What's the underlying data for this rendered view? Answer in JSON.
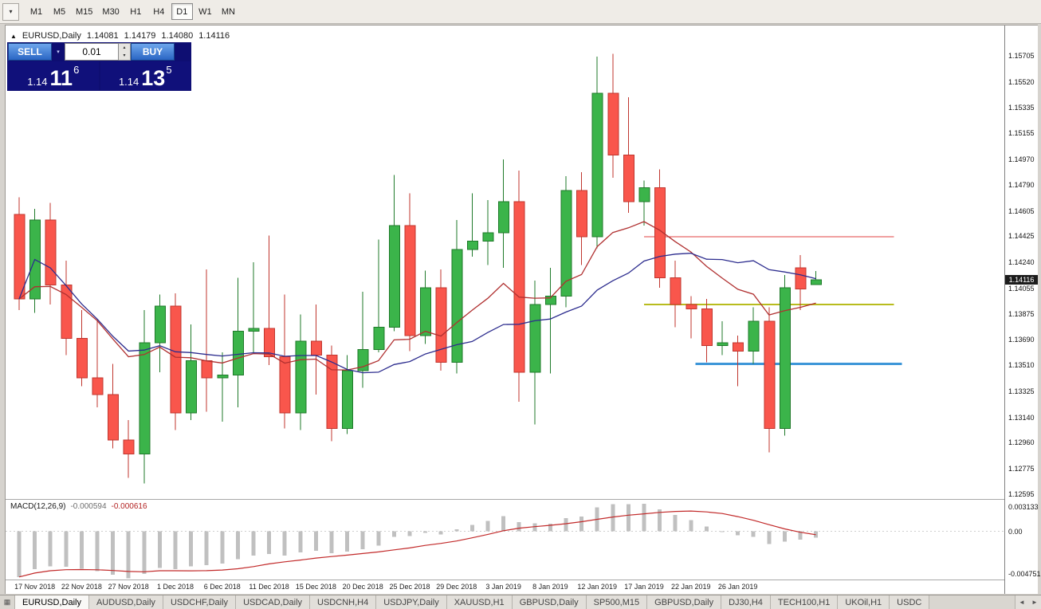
{
  "icons": {
    "dropdown_arrow": "▾",
    "spinner_up": "▴",
    "spinner_down": "▾",
    "tab_scroll_left": "◄",
    "tab_scroll_right": "►",
    "chart_marker": "▲",
    "window_icon": "▦"
  },
  "toolbar": {
    "timeframes": [
      "M1",
      "M5",
      "M15",
      "M30",
      "H1",
      "H4",
      "D1",
      "W1",
      "MN"
    ],
    "active": "D1"
  },
  "chart_header": {
    "symbol": "EURUSD,Daily",
    "open": "1.14081",
    "high": "1.14179",
    "low": "1.14080",
    "close": "1.14116"
  },
  "trade_panel": {
    "sell_label": "SELL",
    "buy_label": "BUY",
    "volume": "0.01",
    "sell_price": {
      "prefix": "1.14",
      "big": "11",
      "sup": "6"
    },
    "buy_price": {
      "prefix": "1.14",
      "big": "13",
      "sup": "5"
    }
  },
  "chart_data": {
    "type": "candlestick",
    "symbol": "EURUSD",
    "timeframe": "Daily",
    "price_top": 1.1592,
    "price_bottom": 1.1256,
    "current_price": "1.14116",
    "colors": {
      "bull": "#3bb44a",
      "bull_edge": "#1f7a2a",
      "bear": "#f9564c",
      "bear_edge": "#c0362e",
      "background": "#ffffff"
    },
    "y_axis_labels": [
      "1.15705",
      "1.15520",
      "1.15335",
      "1.15155",
      "1.14970",
      "1.14790",
      "1.14605",
      "1.14425",
      "1.14240",
      "1.14055",
      "1.13875",
      "1.13690",
      "1.13510",
      "1.13325",
      "1.13140",
      "1.12960",
      "1.12775",
      "1.12595"
    ],
    "x_labels": [
      {
        "text": "17 Nov 2018",
        "i": 1
      },
      {
        "text": "22 Nov 2018",
        "i": 4
      },
      {
        "text": "27 Nov 2018",
        "i": 7
      },
      {
        "text": "1 Dec 2018",
        "i": 10
      },
      {
        "text": "6 Dec 2018",
        "i": 13
      },
      {
        "text": "11 Dec 2018",
        "i": 16
      },
      {
        "text": "15 Dec 2018",
        "i": 19
      },
      {
        "text": "20 Dec 2018",
        "i": 22
      },
      {
        "text": "25 Dec 2018",
        "i": 25
      },
      {
        "text": "29 Dec 2018",
        "i": 28
      },
      {
        "text": "3 Jan 2019",
        "i": 31
      },
      {
        "text": "8 Jan 2019",
        "i": 34
      },
      {
        "text": "12 Jan 2019",
        "i": 37
      },
      {
        "text": "17 Jan 2019",
        "i": 40
      },
      {
        "text": "22 Jan 2019",
        "i": 43
      },
      {
        "text": "26 Jan 2019",
        "i": 46
      }
    ],
    "candles": [
      {
        "t": "15 Nov",
        "o": 1.1458,
        "h": 1.147,
        "l": 1.139,
        "c": 1.1398
      },
      {
        "t": "16 Nov",
        "o": 1.1398,
        "h": 1.1462,
        "l": 1.1388,
        "c": 1.1454
      },
      {
        "t": "19 Nov",
        "o": 1.1454,
        "h": 1.1466,
        "l": 1.1394,
        "c": 1.1408
      },
      {
        "t": "20 Nov",
        "o": 1.1408,
        "h": 1.1425,
        "l": 1.1358,
        "c": 1.137
      },
      {
        "t": "21 Nov",
        "o": 1.137,
        "h": 1.139,
        "l": 1.1336,
        "c": 1.1342
      },
      {
        "t": "22 Nov",
        "o": 1.1342,
        "h": 1.1383,
        "l": 1.1321,
        "c": 1.133
      },
      {
        "t": "23 Nov",
        "o": 1.133,
        "h": 1.1352,
        "l": 1.1292,
        "c": 1.1298
      },
      {
        "t": "26 Nov",
        "o": 1.1298,
        "h": 1.1312,
        "l": 1.1271,
        "c": 1.1288
      },
      {
        "t": "27 Nov",
        "o": 1.1288,
        "h": 1.139,
        "l": 1.1267,
        "c": 1.1367
      },
      {
        "t": "28 Nov",
        "o": 1.1367,
        "h": 1.1401,
        "l": 1.1346,
        "c": 1.1393
      },
      {
        "t": "29 Nov",
        "o": 1.1393,
        "h": 1.1402,
        "l": 1.1305,
        "c": 1.1317
      },
      {
        "t": "30 Nov",
        "o": 1.1317,
        "h": 1.138,
        "l": 1.1312,
        "c": 1.1354
      },
      {
        "t": "3 Dec",
        "o": 1.1354,
        "h": 1.1419,
        "l": 1.1318,
        "c": 1.1342
      },
      {
        "t": "4 Dec",
        "o": 1.1342,
        "h": 1.136,
        "l": 1.1311,
        "c": 1.1344
      },
      {
        "t": "5 Dec",
        "o": 1.1344,
        "h": 1.1413,
        "l": 1.1321,
        "c": 1.1375
      },
      {
        "t": "6 Dec",
        "o": 1.1375,
        "h": 1.1424,
        "l": 1.136,
        "c": 1.1377
      },
      {
        "t": "7 Dec",
        "o": 1.1377,
        "h": 1.1443,
        "l": 1.1351,
        "c": 1.1357
      },
      {
        "t": "10 Dec",
        "o": 1.1357,
        "h": 1.1401,
        "l": 1.1306,
        "c": 1.1317
      },
      {
        "t": "11 Dec",
        "o": 1.1317,
        "h": 1.1387,
        "l": 1.1305,
        "c": 1.1368
      },
      {
        "t": "12 Dec",
        "o": 1.1368,
        "h": 1.1394,
        "l": 1.133,
        "c": 1.1358
      },
      {
        "t": "13 Dec",
        "o": 1.1358,
        "h": 1.1365,
        "l": 1.1297,
        "c": 1.1306
      },
      {
        "t": "14 Dec",
        "o": 1.1306,
        "h": 1.1358,
        "l": 1.1302,
        "c": 1.1347
      },
      {
        "t": "17 Dec",
        "o": 1.1347,
        "h": 1.1403,
        "l": 1.1335,
        "c": 1.1362
      },
      {
        "t": "18 Dec",
        "o": 1.1362,
        "h": 1.144,
        "l": 1.136,
        "c": 1.1378
      },
      {
        "t": "19 Dec",
        "o": 1.1378,
        "h": 1.1486,
        "l": 1.1375,
        "c": 1.145
      },
      {
        "t": "20 Dec",
        "o": 1.145,
        "h": 1.1473,
        "l": 1.1361,
        "c": 1.1372
      },
      {
        "t": "21 Dec",
        "o": 1.1372,
        "h": 1.1418,
        "l": 1.1366,
        "c": 1.1406
      },
      {
        "t": "24 Dec",
        "o": 1.1406,
        "h": 1.1419,
        "l": 1.1347,
        "c": 1.1353
      },
      {
        "t": "26 Dec",
        "o": 1.1353,
        "h": 1.1454,
        "l": 1.1345,
        "c": 1.1433
      },
      {
        "t": "27 Dec",
        "o": 1.1433,
        "h": 1.1473,
        "l": 1.1428,
        "c": 1.1439
      },
      {
        "t": "28 Dec",
        "o": 1.1439,
        "h": 1.1468,
        "l": 1.1422,
        "c": 1.1445
      },
      {
        "t": "31 Dec",
        "o": 1.1445,
        "h": 1.1497,
        "l": 1.142,
        "c": 1.1467
      },
      {
        "t": "2 Jan",
        "o": 1.1467,
        "h": 1.1489,
        "l": 1.1325,
        "c": 1.1346
      },
      {
        "t": "3 Jan",
        "o": 1.1346,
        "h": 1.1411,
        "l": 1.1309,
        "c": 1.1394
      },
      {
        "t": "4 Jan",
        "o": 1.1394,
        "h": 1.142,
        "l": 1.1345,
        "c": 1.14
      },
      {
        "t": "7 Jan",
        "o": 1.14,
        "h": 1.1485,
        "l": 1.1392,
        "c": 1.1475
      },
      {
        "t": "8 Jan",
        "o": 1.1475,
        "h": 1.1488,
        "l": 1.1422,
        "c": 1.1442
      },
      {
        "t": "9 Jan",
        "o": 1.1442,
        "h": 1.157,
        "l": 1.1434,
        "c": 1.1544
      },
      {
        "t": "10 Jan",
        "o": 1.1544,
        "h": 1.1572,
        "l": 1.1484,
        "c": 1.15
      },
      {
        "t": "11 Jan",
        "o": 1.15,
        "h": 1.1541,
        "l": 1.1459,
        "c": 1.1467
      },
      {
        "t": "14 Jan",
        "o": 1.1467,
        "h": 1.1482,
        "l": 1.145,
        "c": 1.1477
      },
      {
        "t": "15 Jan",
        "o": 1.1477,
        "h": 1.149,
        "l": 1.1406,
        "c": 1.1413
      },
      {
        "t": "16 Jan",
        "o": 1.1413,
        "h": 1.1425,
        "l": 1.1378,
        "c": 1.1394
      },
      {
        "t": "17 Jan",
        "o": 1.1394,
        "h": 1.14,
        "l": 1.137,
        "c": 1.1391
      },
      {
        "t": "18 Jan",
        "o": 1.1391,
        "h": 1.1398,
        "l": 1.1353,
        "c": 1.1365
      },
      {
        "t": "21 Jan",
        "o": 1.1365,
        "h": 1.1382,
        "l": 1.1358,
        "c": 1.1367
      },
      {
        "t": "22 Jan",
        "o": 1.1367,
        "h": 1.1372,
        "l": 1.1336,
        "c": 1.1361
      },
      {
        "t": "23 Jan",
        "o": 1.1361,
        "h": 1.1392,
        "l": 1.1352,
        "c": 1.1382
      },
      {
        "t": "24 Jan",
        "o": 1.1382,
        "h": 1.1392,
        "l": 1.1289,
        "c": 1.1306
      },
      {
        "t": "25 Jan",
        "o": 1.1306,
        "h": 1.1415,
        "l": 1.1301,
        "c": 1.1406
      },
      {
        "t": "28 Jan",
        "o": 1.142,
        "h": 1.1429,
        "l": 1.139,
        "c": 1.1405
      },
      {
        "t": "29 Jan",
        "o": 1.14081,
        "h": 1.14179,
        "l": 1.1408,
        "c": 1.14116
      }
    ],
    "moving_averages": [
      {
        "name": "fast-ma",
        "type": "ema",
        "period": 12,
        "color": "#b03030"
      },
      {
        "name": "slow-ma",
        "type": "sma",
        "period": 20,
        "color": "#2c2c8e"
      }
    ],
    "hlines": [
      {
        "price": 1.1442,
        "color": "#e04040",
        "width": 1,
        "start_index": 40,
        "end_index": 56
      },
      {
        "price": 1.1394,
        "color": "#b8bc1e",
        "width": 2,
        "start_index": 40,
        "end_index": 56
      },
      {
        "price": 1.1352,
        "color": "#3d96d8",
        "width": 3,
        "start_index": 43.3,
        "end_index": 56.5
      }
    ],
    "macd": {
      "label": "MACD(12,26,9)",
      "value_main": "-0.000594",
      "value_signal": "-0.000616",
      "params": {
        "fast": 12,
        "slow": 26,
        "signal": 9
      },
      "axis_labels": {
        "top": "0.003133",
        "zero": "0.00",
        "bottom": "-0.004751"
      },
      "range": {
        "top": 0.003133,
        "bottom": -0.004751
      },
      "hist_color": "#c0c0c0",
      "signal_color": "#c22a2a"
    }
  },
  "bottom_tabs": {
    "tabs": [
      "EURUSD,Daily",
      "AUDUSD,Daily",
      "USDCHF,Daily",
      "USDCAD,Daily",
      "USDCNH,H4",
      "USDJPY,Daily",
      "XAUUSD,H1",
      "GBPUSD,Daily",
      "SP500,M15",
      "GBPUSD,Daily",
      "DJ30,H4",
      "TECH100,H1",
      "UKOil,H1",
      "USDC"
    ],
    "active_index": 0
  }
}
